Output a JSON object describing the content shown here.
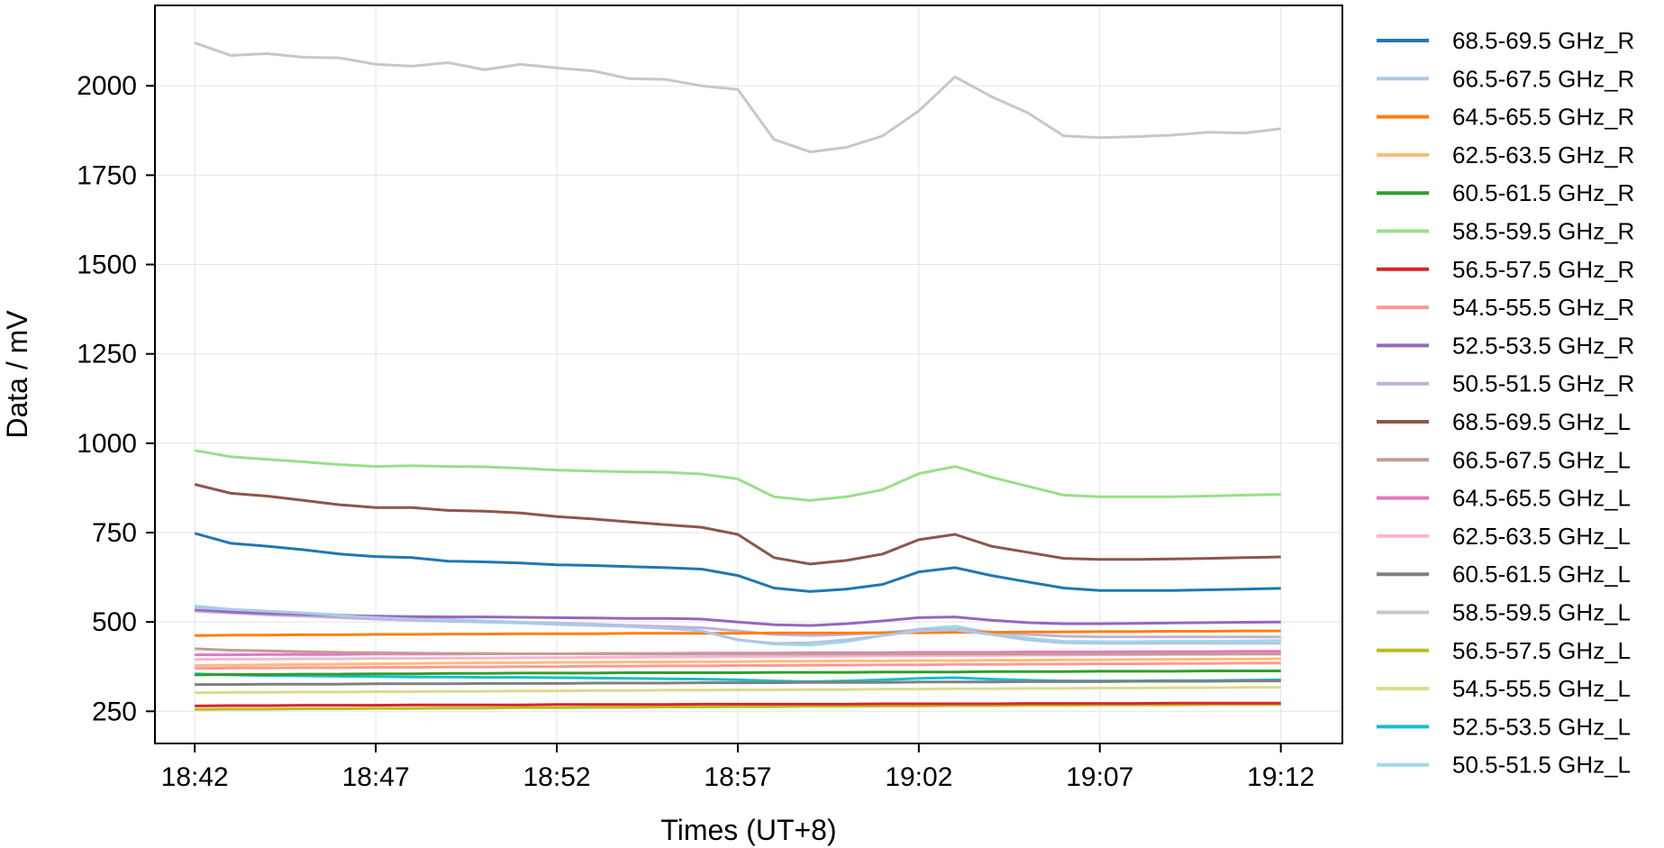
{
  "chart_data": {
    "type": "line",
    "title": "",
    "xlabel": "Times (UT+8)",
    "ylabel": "Data / mV",
    "x_tick_labels": [
      "18:42",
      "18:47",
      "18:52",
      "18:57",
      "19:02",
      "19:07",
      "19:12"
    ],
    "x_ticks_min": [
      0,
      5,
      10,
      15,
      20,
      25,
      30
    ],
    "xlim_min": [
      -1.1,
      31.7
    ],
    "x": [
      0,
      1,
      2,
      3,
      4,
      5,
      6,
      7,
      8,
      9,
      10,
      11,
      12,
      13,
      14,
      15,
      16,
      17,
      18,
      19,
      20,
      21,
      22,
      23,
      24,
      25,
      26,
      27,
      28,
      29,
      30
    ],
    "y_ticks": [
      250,
      500,
      750,
      1000,
      1250,
      1500,
      1750,
      2000
    ],
    "ylim": [
      160,
      2225
    ],
    "grid": true,
    "legend_position": "outside-right",
    "series": [
      {
        "name": "68.5-69.5 GHz_R",
        "color": "#1f77b4",
        "values": [
          748,
          720,
          712,
          702,
          690,
          683,
          680,
          670,
          668,
          665,
          660,
          658,
          655,
          652,
          648,
          630,
          595,
          585,
          592,
          605,
          640,
          652,
          630,
          612,
          595,
          588,
          588,
          588,
          590,
          592,
          594
        ]
      },
      {
        "name": "66.5-67.5 GHz_R",
        "color": "#aec7e8",
        "values": [
          540,
          535,
          530,
          525,
          518,
          512,
          508,
          505,
          500,
          497,
          493,
          490,
          487,
          482,
          475,
          450,
          440,
          442,
          450,
          462,
          475,
          478,
          465,
          450,
          442,
          440,
          440,
          440,
          440,
          440,
          440
        ]
      },
      {
        "name": "64.5-65.5 GHz_R",
        "color": "#ff7f0e",
        "values": [
          462,
          463,
          463,
          464,
          464,
          465,
          465,
          466,
          466,
          467,
          467,
          467,
          468,
          468,
          468,
          468,
          469,
          469,
          469,
          470,
          470,
          471,
          471,
          472,
          472,
          473,
          473,
          474,
          474,
          475,
          475
        ]
      },
      {
        "name": "62.5-63.5 GHz_R",
        "color": "#ffbb78",
        "values": [
          378,
          379,
          380,
          381,
          382,
          383,
          384,
          385,
          386,
          386,
          387,
          387,
          388,
          388,
          389,
          389,
          390,
          390,
          391,
          391,
          392,
          392,
          393,
          393,
          394,
          394,
          395,
          395,
          396,
          396,
          397
        ]
      },
      {
        "name": "60.5-61.5 GHz_R",
        "color": "#2ca02c",
        "values": [
          352,
          353,
          353,
          354,
          354,
          355,
          355,
          356,
          356,
          357,
          357,
          357,
          358,
          358,
          358,
          358,
          359,
          359,
          359,
          360,
          360,
          360,
          361,
          361,
          361,
          362,
          362,
          362,
          363,
          363,
          363
        ]
      },
      {
        "name": "58.5-59.5 GHz_R",
        "color": "#98df8a",
        "values": [
          980,
          962,
          955,
          948,
          940,
          935,
          937,
          935,
          934,
          930,
          925,
          922,
          920,
          919,
          914,
          900,
          850,
          840,
          850,
          870,
          915,
          935,
          905,
          880,
          855,
          850,
          850,
          850,
          852,
          855,
          857
        ]
      },
      {
        "name": "56.5-57.5 GHz_R",
        "color": "#d62728",
        "values": [
          265,
          266,
          266,
          267,
          267,
          267,
          268,
          268,
          268,
          268,
          269,
          269,
          269,
          269,
          270,
          270,
          270,
          270,
          270,
          271,
          271,
          271,
          271,
          272,
          272,
          272,
          272,
          273,
          273,
          273,
          273
        ]
      },
      {
        "name": "54.5-55.5 GHz_R",
        "color": "#ff9896",
        "values": [
          370,
          371,
          371,
          372,
          372,
          373,
          373,
          374,
          374,
          375,
          375,
          376,
          376,
          377,
          377,
          378,
          378,
          379,
          379,
          380,
          380,
          381,
          381,
          382,
          382,
          383,
          383,
          384,
          384,
          385,
          385
        ]
      },
      {
        "name": "52.5-53.5 GHz_R",
        "color": "#9467bd",
        "values": [
          535,
          528,
          524,
          521,
          518,
          516,
          515,
          514,
          514,
          513,
          512,
          511,
          510,
          510,
          508,
          500,
          492,
          490,
          495,
          503,
          512,
          514,
          505,
          498,
          495,
          495,
          496,
          497,
          498,
          499,
          500
        ]
      },
      {
        "name": "50.5-51.5 GHz_R",
        "color": "#c5b0d5",
        "values": [
          530,
          525,
          520,
          516,
          512,
          508,
          505,
          502,
          500,
          497,
          495,
          492,
          490,
          487,
          484,
          475,
          465,
          462,
          465,
          470,
          478,
          480,
          472,
          465,
          460,
          458,
          458,
          458,
          458,
          458,
          458
        ]
      },
      {
        "name": "68.5-69.5 GHz_L",
        "color": "#8c564b",
        "values": [
          885,
          860,
          852,
          840,
          828,
          820,
          820,
          812,
          810,
          805,
          795,
          788,
          780,
          772,
          765,
          745,
          680,
          662,
          672,
          690,
          730,
          745,
          712,
          695,
          678,
          675,
          675,
          676,
          678,
          680,
          682
        ]
      },
      {
        "name": "66.5-67.5 GHz_L",
        "color": "#c49c94",
        "values": [
          425,
          421,
          419,
          417,
          415,
          414,
          413,
          412,
          412,
          411,
          411,
          411,
          410,
          410,
          410,
          410,
          410,
          410,
          410,
          410,
          410,
          410,
          410,
          410,
          410,
          410,
          410,
          410,
          410,
          410,
          410
        ]
      },
      {
        "name": "64.5-65.5 GHz_L",
        "color": "#e377c2",
        "values": [
          408,
          408,
          409,
          409,
          409,
          410,
          410,
          410,
          411,
          411,
          411,
          412,
          412,
          412,
          413,
          413,
          413,
          414,
          414,
          414,
          415,
          415,
          415,
          416,
          416,
          416,
          417,
          417,
          417,
          418,
          418
        ]
      },
      {
        "name": "62.5-63.5 GHz_L",
        "color": "#f7b6d2",
        "values": [
          395,
          396,
          396,
          397,
          397,
          398,
          398,
          399,
          399,
          400,
          400,
          401,
          401,
          402,
          402,
          403,
          403,
          404,
          404,
          405,
          405,
          406,
          406,
          407,
          407,
          408,
          408,
          409,
          409,
          410,
          410
        ]
      },
      {
        "name": "60.5-61.5 GHz_L",
        "color": "#7f7f7f",
        "values": [
          325,
          325,
          326,
          326,
          326,
          327,
          327,
          327,
          328,
          328,
          328,
          329,
          329,
          329,
          330,
          330,
          330,
          331,
          331,
          331,
          332,
          332,
          332,
          333,
          333,
          333,
          334,
          334,
          334,
          335,
          335
        ]
      },
      {
        "name": "58.5-59.5 GHz_L",
        "color": "#c7c7c7",
        "values": [
          2120,
          2085,
          2090,
          2080,
          2078,
          2060,
          2055,
          2065,
          2045,
          2060,
          2050,
          2042,
          2020,
          2018,
          2000,
          1990,
          1850,
          1815,
          1828,
          1860,
          1930,
          2025,
          1970,
          1925,
          1860,
          1855,
          1858,
          1862,
          1870,
          1868,
          1880
        ]
      },
      {
        "name": "56.5-57.5 GHz_L",
        "color": "#bcbd22",
        "values": [
          255,
          256,
          256,
          257,
          257,
          258,
          258,
          259,
          259,
          260,
          260,
          261,
          261,
          262,
          262,
          263,
          263,
          264,
          264,
          265,
          265,
          266,
          266,
          267,
          267,
          268,
          268,
          268,
          269,
          269,
          269
        ]
      },
      {
        "name": "54.5-55.5 GHz_L",
        "color": "#dbdb8d",
        "values": [
          302,
          303,
          303,
          304,
          304,
          305,
          305,
          306,
          306,
          307,
          307,
          308,
          308,
          309,
          309,
          310,
          310,
          311,
          311,
          312,
          312,
          313,
          313,
          314,
          314,
          315,
          315,
          316,
          316,
          317,
          317
        ]
      },
      {
        "name": "52.5-53.5 GHz_L",
        "color": "#17becf",
        "values": [
          355,
          352,
          350,
          349,
          348,
          347,
          346,
          346,
          345,
          345,
          344,
          343,
          342,
          341,
          340,
          338,
          335,
          333,
          335,
          338,
          342,
          344,
          340,
          337,
          335,
          335,
          335,
          336,
          336,
          337,
          338
        ]
      },
      {
        "name": "50.5-51.5 GHz_L",
        "color": "#9edae5",
        "values": [
          545,
          535,
          530,
          525,
          520,
          515,
          510,
          507,
          503,
          500,
          497,
          494,
          490,
          485,
          475,
          450,
          438,
          435,
          445,
          462,
          480,
          488,
          470,
          455,
          446,
          445,
          445,
          446,
          446,
          447,
          448
        ]
      }
    ]
  }
}
